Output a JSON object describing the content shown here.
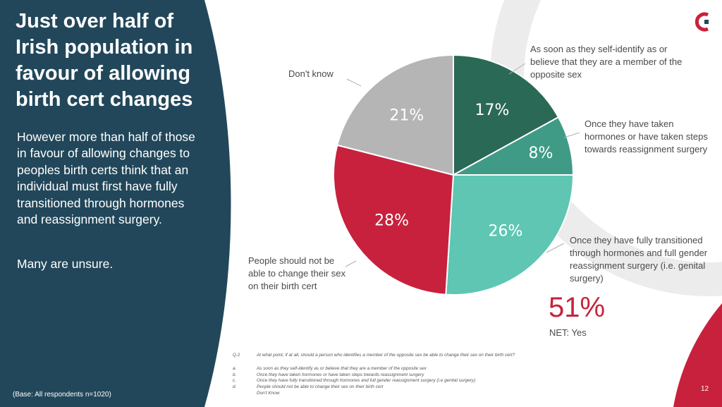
{
  "slide": {
    "headline": "Just over half of Irish population in favour of allowing birth cert changes",
    "body": "However more than half of those in favour of allowing changes to peoples birth certs think that an individual must first have fully transitioned through hormones and reassignment surgery.",
    "body2": "Many are unsure.",
    "base_note": "(Base: All respondents n=1020)",
    "page_number": "12"
  },
  "colors": {
    "left_panel": "#22475a",
    "accent_red": "#c8213d",
    "bg_arc": "#ececec"
  },
  "chart_data": {
    "type": "pie",
    "slices": [
      {
        "label": "As soon as they self-identify as or believe that they are a member of the opposite sex",
        "value": 17,
        "display": "17%",
        "color": "#2a6956"
      },
      {
        "label": "Once they have taken hormones or have taken steps towards reassignment surgery",
        "value": 8,
        "display": "8%",
        "color": "#3f9b86"
      },
      {
        "label": "Once they have fully transitioned through hormones and full gender reassignment surgery (i.e. genital surgery)",
        "value": 26,
        "display": "26%",
        "color": "#5ec6b3"
      },
      {
        "label": "People should not be able to change their sex on their birth cert",
        "value": 28,
        "display": "28%",
        "color": "#c8213d"
      },
      {
        "label": "Don't know",
        "value": 21,
        "display": "21%",
        "color": "#b5b5b5"
      }
    ],
    "net": {
      "value": "51%",
      "label": "NET: Yes"
    }
  },
  "question": {
    "number": "Q.2",
    "text": "At what point, if at all, should a person who identifies a member of the opposite sex be able to change their sex on their birth cert?",
    "options": [
      {
        "key": "a.",
        "text": "As soon as they self-identify as or believe that they are a member of the opposite sex"
      },
      {
        "key": "b.",
        "text": "Once they have taken hormones or have taken steps towards reassignment surgery"
      },
      {
        "key": "c.",
        "text": "Once they have fully transitioned through hormones and full gender reassignment surgery (i.e genital surgery)"
      },
      {
        "key": "d.",
        "text": "People should not be able to change their sex on their birth cert"
      },
      {
        "key": "",
        "text": "Don't Know"
      }
    ]
  }
}
